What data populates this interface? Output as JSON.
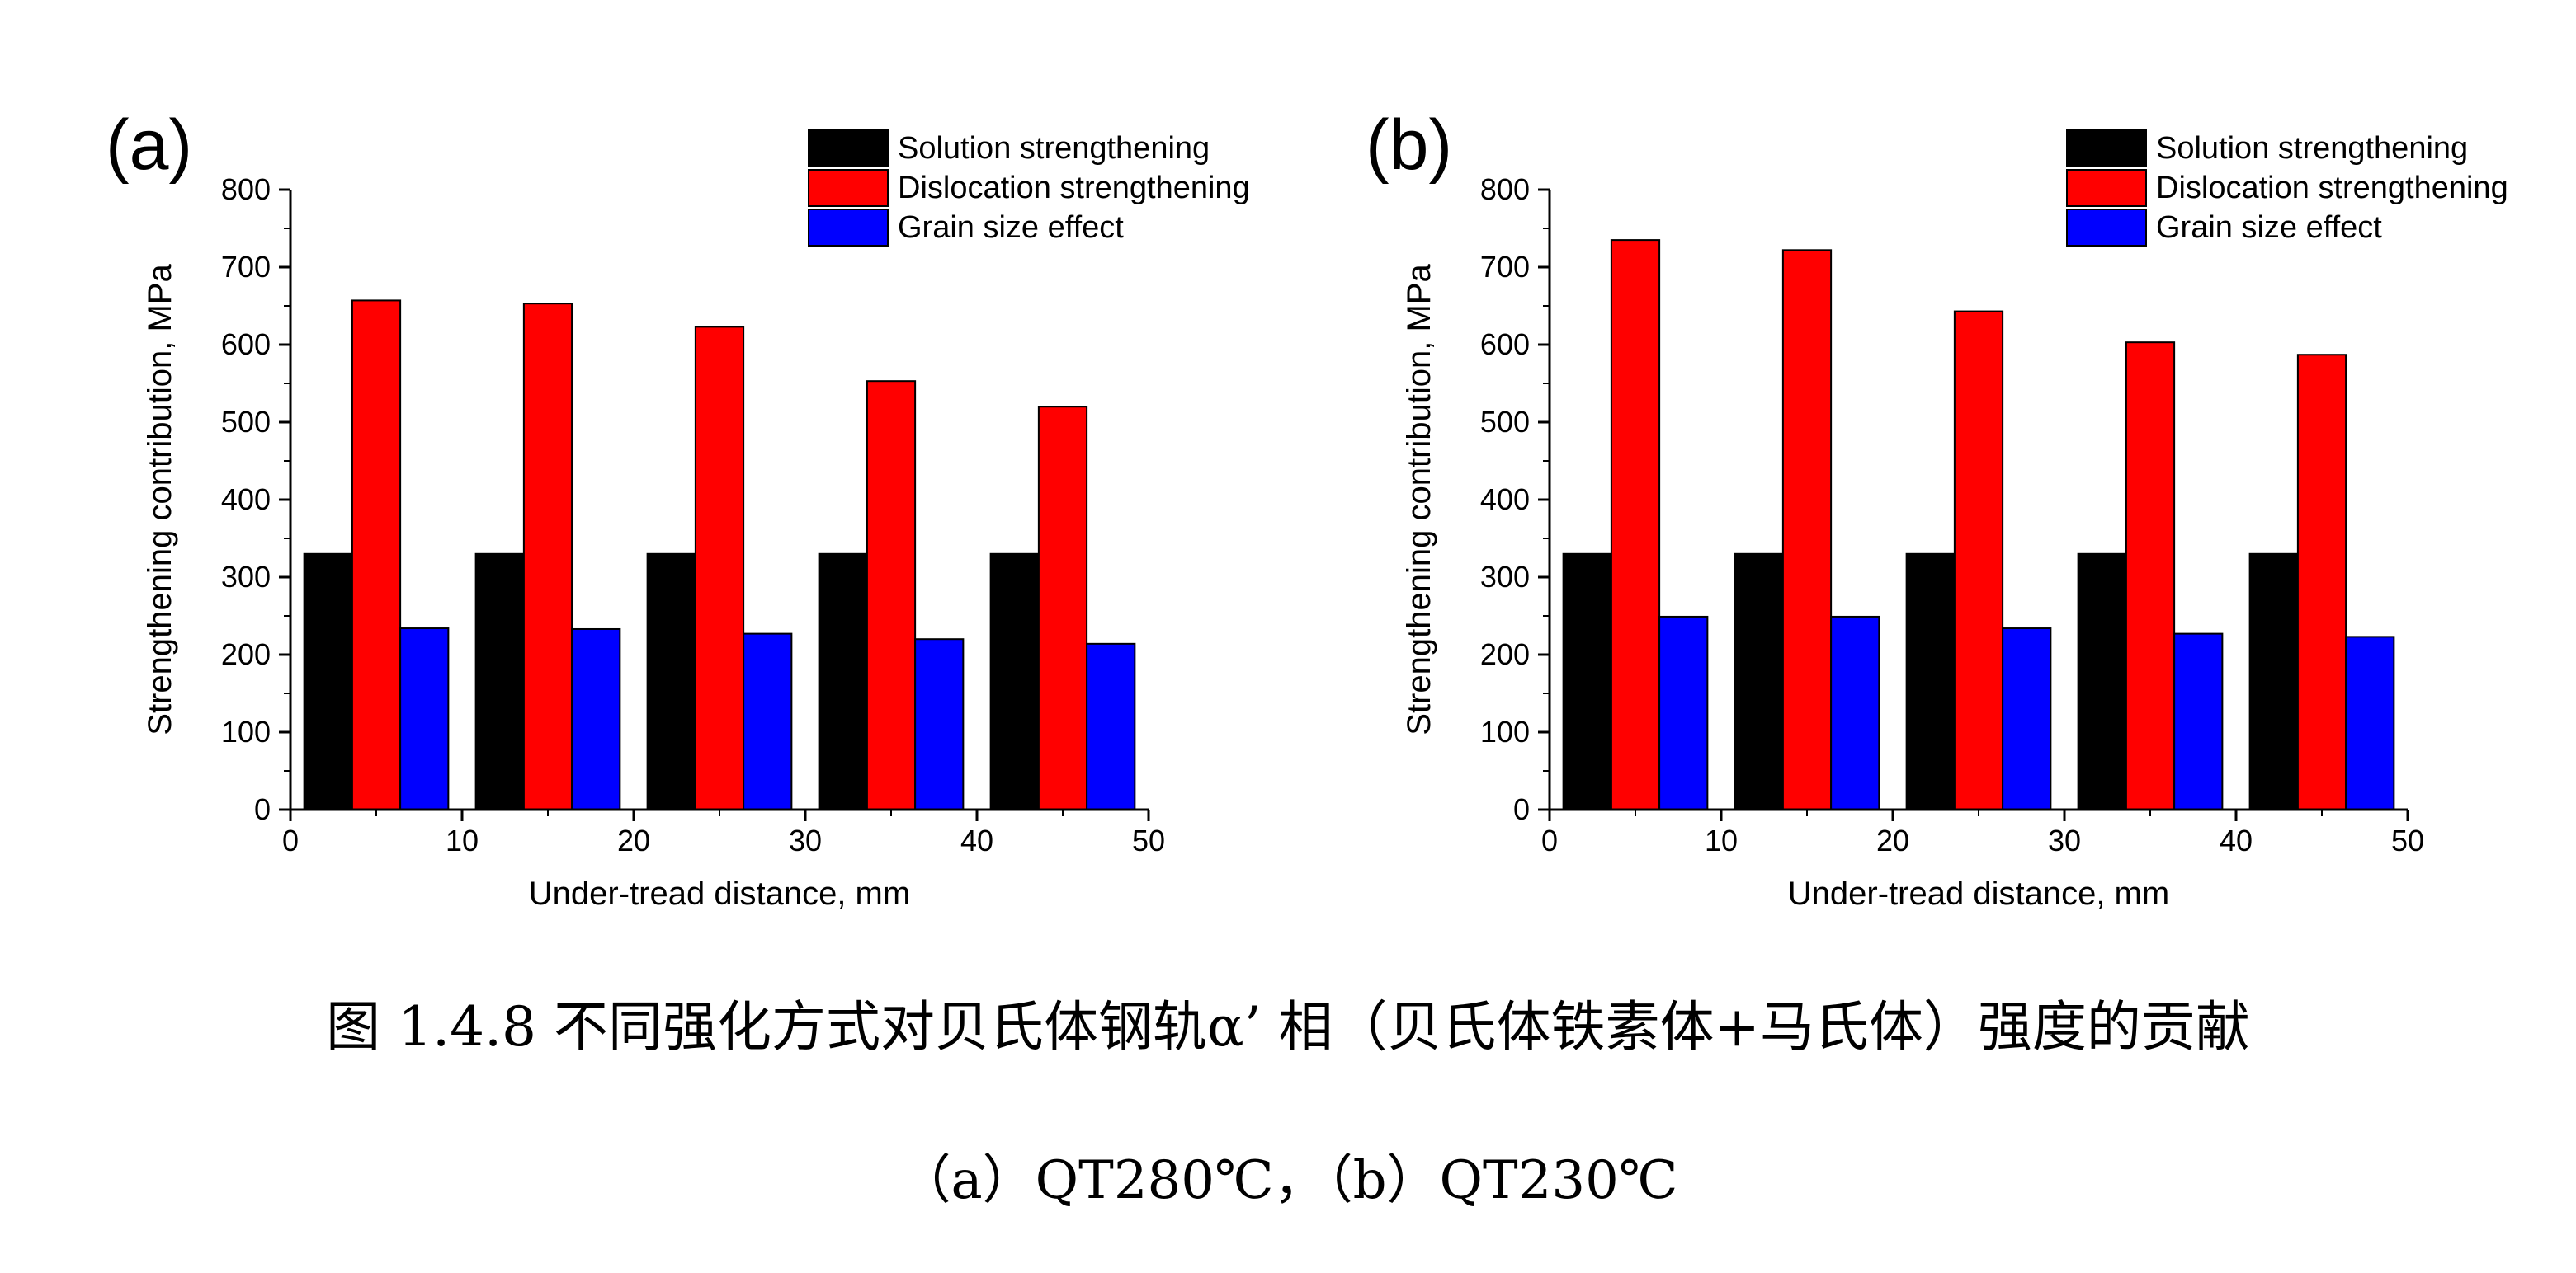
{
  "colors": {
    "solution": "#000000",
    "dislocation": "#ff0000",
    "grain": "#0000ff",
    "axis": "#000000",
    "background": "#ffffff"
  },
  "chart_data": [
    {
      "type": "bar",
      "panel_label": "(a)",
      "xlabel": "Under-tread distance, mm",
      "ylabel": "Strengthening contribution, MPa",
      "xlim": [
        0,
        50
      ],
      "ylim": [
        0,
        800
      ],
      "xticks": [
        0,
        10,
        20,
        30,
        40,
        50
      ],
      "yticks": [
        0,
        100,
        200,
        300,
        400,
        500,
        600,
        700,
        800
      ],
      "categories": [
        5,
        15,
        25,
        35,
        45
      ],
      "bar_width": 2.8,
      "legend_position": "top-right",
      "series": [
        {
          "name": "Solution strengthening",
          "color": "#000000",
          "x": [
            2.2,
            12.2,
            22.2,
            32.2,
            42.2
          ],
          "values": [
            330,
            330,
            330,
            330,
            330
          ]
        },
        {
          "name": "Dislocation strengthening",
          "color": "#ff0000",
          "x": [
            5.0,
            15.0,
            25.0,
            35.0,
            45.0
          ],
          "values": [
            657,
            653,
            623,
            553,
            520
          ]
        },
        {
          "name": "Grain size effect",
          "color": "#0000ff",
          "x": [
            7.8,
            17.8,
            27.8,
            37.8,
            47.8
          ],
          "values": [
            234,
            233,
            227,
            220,
            214
          ]
        }
      ]
    },
    {
      "type": "bar",
      "panel_label": "(b)",
      "xlabel": "Under-tread distance, mm",
      "ylabel": "Strengthening contribution, MPa",
      "xlim": [
        0,
        50
      ],
      "ylim": [
        0,
        800
      ],
      "xticks": [
        0,
        10,
        20,
        30,
        40,
        50
      ],
      "yticks": [
        0,
        100,
        200,
        300,
        400,
        500,
        600,
        700,
        800
      ],
      "categories": [
        5,
        15,
        25,
        35,
        45
      ],
      "bar_width": 2.8,
      "legend_position": "top-right",
      "series": [
        {
          "name": "Solution strengthening",
          "color": "#000000",
          "x": [
            2.2,
            12.2,
            22.2,
            32.2,
            42.2
          ],
          "values": [
            330,
            330,
            330,
            330,
            330
          ]
        },
        {
          "name": "Dislocation strengthening",
          "color": "#ff0000",
          "x": [
            5.0,
            15.0,
            25.0,
            35.0,
            45.0
          ],
          "values": [
            735,
            722,
            643,
            603,
            587
          ]
        },
        {
          "name": "Grain size effect",
          "color": "#0000ff",
          "x": [
            7.8,
            17.8,
            27.8,
            37.8,
            47.8
          ],
          "values": [
            249,
            249,
            234,
            227,
            223
          ]
        }
      ]
    }
  ],
  "caption": {
    "main": "图 1.4.8  不同强化方式对贝氏体钢轨α’ 相（贝氏体铁素体+马氏体）强度的贡献",
    "sub": "（a）QT280℃，（b）QT230℃"
  }
}
